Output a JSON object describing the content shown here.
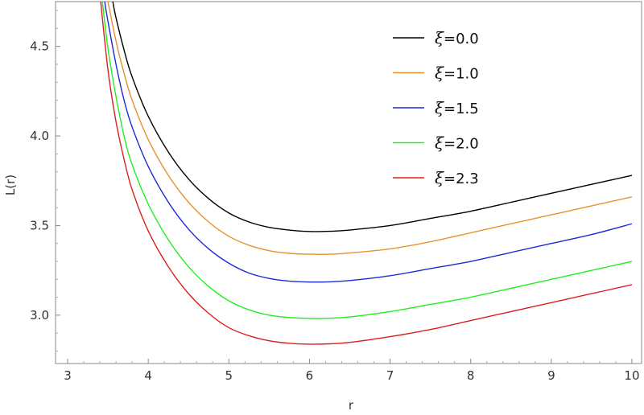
{
  "chart_data": {
    "type": "line",
    "title": "",
    "xlabel": "r",
    "ylabel": "L(r)",
    "xlim": [
      2.85,
      10.12
    ],
    "ylim": [
      2.73,
      4.75
    ],
    "xticks": [
      3,
      4,
      5,
      6,
      7,
      8,
      9,
      10
    ],
    "yticks": [
      3.0,
      3.5,
      4.0,
      4.5
    ],
    "yticklabels": [
      "3.0",
      "3.5",
      "4.0",
      "4.5"
    ],
    "grid": false,
    "legend_position": "top-right",
    "series": [
      {
        "name": "ξ=0.0",
        "name_symbol": "ξ",
        "name_value": "=0.0",
        "color": "#000000",
        "x": [
          3.56,
          3.6,
          3.7,
          3.8,
          4.0,
          4.25,
          4.5,
          4.75,
          5.0,
          5.25,
          5.5,
          5.75,
          6.0,
          6.25,
          6.5,
          7.0,
          7.5,
          8.0,
          8.5,
          9.0,
          9.5,
          10.0
        ],
        "y": [
          4.75,
          4.66,
          4.48,
          4.33,
          4.11,
          3.91,
          3.76,
          3.65,
          3.57,
          3.52,
          3.49,
          3.475,
          3.467,
          3.468,
          3.475,
          3.5,
          3.54,
          3.58,
          3.63,
          3.68,
          3.73,
          3.78
        ]
      },
      {
        "name": "ξ=1.0",
        "name_symbol": "ξ",
        "name_value": "=1.0",
        "color": "#e8912c",
        "x": [
          3.5,
          3.6,
          3.7,
          3.8,
          4.0,
          4.25,
          4.5,
          4.75,
          5.0,
          5.25,
          5.5,
          5.75,
          6.0,
          6.25,
          6.5,
          7.0,
          7.5,
          8.0,
          8.5,
          9.0,
          9.5,
          10.0
        ],
        "y": [
          4.75,
          4.53,
          4.35,
          4.2,
          3.98,
          3.78,
          3.63,
          3.52,
          3.44,
          3.39,
          3.36,
          3.345,
          3.34,
          3.34,
          3.347,
          3.37,
          3.41,
          3.46,
          3.51,
          3.56,
          3.61,
          3.66
        ]
      },
      {
        "name": "ξ=1.5",
        "name_symbol": "ξ",
        "name_value": "=1.5",
        "color": "#1c2ad6",
        "x": [
          3.46,
          3.5,
          3.6,
          3.7,
          3.8,
          4.0,
          4.25,
          4.5,
          4.75,
          5.0,
          5.25,
          5.5,
          5.75,
          6.0,
          6.25,
          6.5,
          7.0,
          7.5,
          8.0,
          8.5,
          9.0,
          9.5,
          10.0
        ],
        "y": [
          4.75,
          4.64,
          4.4,
          4.2,
          4.05,
          3.83,
          3.63,
          3.48,
          3.37,
          3.29,
          3.235,
          3.205,
          3.19,
          3.185,
          3.186,
          3.193,
          3.22,
          3.26,
          3.3,
          3.35,
          3.4,
          3.45,
          3.51
        ]
      },
      {
        "name": "ξ=2.0",
        "name_symbol": "ξ",
        "name_value": "=2.0",
        "color": "#22ee22",
        "x": [
          3.43,
          3.5,
          3.6,
          3.7,
          3.8,
          4.0,
          4.25,
          4.5,
          4.75,
          5.0,
          5.25,
          5.5,
          5.75,
          6.0,
          6.25,
          6.5,
          7.0,
          7.5,
          8.0,
          8.5,
          9.0,
          9.5,
          10.0
        ],
        "y": [
          4.75,
          4.49,
          4.22,
          4.0,
          3.84,
          3.62,
          3.42,
          3.27,
          3.16,
          3.08,
          3.03,
          3.0,
          2.987,
          2.982,
          2.983,
          2.99,
          3.02,
          3.06,
          3.1,
          3.15,
          3.2,
          3.25,
          3.3
        ]
      },
      {
        "name": "ξ=2.3",
        "name_symbol": "ξ",
        "name_value": "=2.3",
        "color": "#dd1e1e",
        "x": [
          3.41,
          3.5,
          3.6,
          3.7,
          3.8,
          4.0,
          4.25,
          4.5,
          4.75,
          5.0,
          5.25,
          5.5,
          5.75,
          6.0,
          6.25,
          6.5,
          7.0,
          7.5,
          8.0,
          8.5,
          9.0,
          9.5,
          10.0
        ],
        "y": [
          4.75,
          4.37,
          4.08,
          3.87,
          3.7,
          3.47,
          3.27,
          3.12,
          3.01,
          2.93,
          2.885,
          2.857,
          2.843,
          2.838,
          2.84,
          2.848,
          2.88,
          2.92,
          2.97,
          3.02,
          3.07,
          3.12,
          3.17
        ]
      }
    ]
  }
}
